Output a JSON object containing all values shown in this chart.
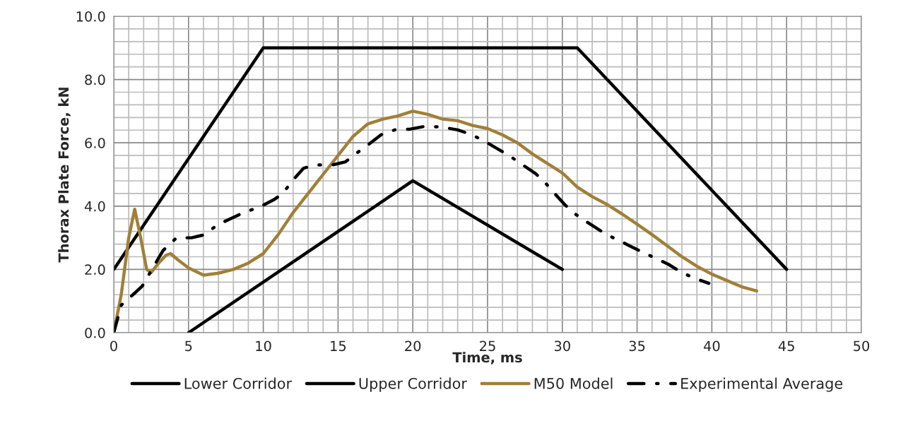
{
  "chart_data": {
    "type": "line",
    "xlabel": "Time, ms",
    "ylabel": "Thorax Plate Force, kN",
    "xlim": [
      0,
      50
    ],
    "xticks": [
      0,
      5,
      10,
      15,
      20,
      25,
      30,
      35,
      40,
      45,
      50
    ],
    "ylim": [
      0,
      10
    ],
    "yticks": [
      {
        "value": 0,
        "label": "0.0"
      },
      {
        "value": 2,
        "label": "2.0"
      },
      {
        "value": 4,
        "label": "4.0"
      },
      {
        "value": 6,
        "label": "6.0"
      },
      {
        "value": 8,
        "label": "8.0"
      },
      {
        "value": 10,
        "label": "10.0"
      }
    ],
    "grid": true,
    "legend": "bottom",
    "marker": "none",
    "series": [
      {
        "name": "Lower Corridor",
        "color": "#000000",
        "line_style": "solid",
        "x": [
          5,
          20,
          30
        ],
        "values": [
          0,
          4.8,
          2
        ]
      },
      {
        "name": "Upper Corridor",
        "color": "#000000",
        "line_style": "solid",
        "x": [
          0,
          10,
          31,
          45
        ],
        "values": [
          2,
          9,
          9,
          2
        ]
      },
      {
        "name": "M50 Model",
        "color": "#a08038",
        "line_style": "solid",
        "x": [
          0,
          0.5,
          1,
          1.4,
          1.8,
          2.2,
          2.5,
          3,
          3.5,
          3.8,
          4.3,
          5,
          6,
          7,
          8,
          9,
          10,
          11,
          12,
          13,
          14,
          15,
          16,
          17,
          18,
          19,
          20,
          21,
          22,
          23,
          24,
          25,
          26,
          27,
          28,
          29,
          30,
          31,
          32,
          33,
          34,
          35,
          36,
          37,
          38,
          39,
          40,
          41,
          42,
          43
        ],
        "values": [
          0,
          1.2,
          3.0,
          3.9,
          3.0,
          2.0,
          1.9,
          2.2,
          2.45,
          2.5,
          2.3,
          2.05,
          1.82,
          1.88,
          2.0,
          2.2,
          2.5,
          3.1,
          3.8,
          4.4,
          5.0,
          5.6,
          6.2,
          6.6,
          6.75,
          6.85,
          7.0,
          6.9,
          6.75,
          6.7,
          6.55,
          6.45,
          6.25,
          6.0,
          5.65,
          5.35,
          5.05,
          4.6,
          4.3,
          4.05,
          3.75,
          3.43,
          3.1,
          2.75,
          2.4,
          2.1,
          1.85,
          1.65,
          1.45,
          1.32
        ]
      },
      {
        "name": "Experimental Average",
        "color": "#000000",
        "line_style": "dashdot",
        "x": [
          0,
          0.5,
          1.4,
          1.9,
          3.3,
          4.2,
          5.2,
          6.1,
          6.9,
          7.8,
          8.7,
          9.7,
          10.7,
          11.3,
          12,
          12.7,
          13.5,
          14.6,
          15.5,
          16.2,
          17.1,
          17.9,
          18.8,
          19.8,
          20.8,
          21.9,
          23,
          23.8,
          24.7,
          25.6,
          26.4,
          27.3,
          28.2,
          28.8,
          29.5,
          30.2,
          30.9,
          31.8,
          32.7,
          33.4,
          34.4,
          35.3,
          36.2,
          37.1,
          38,
          38.8,
          39.8
        ],
        "values": [
          0,
          0.87,
          1.25,
          1.47,
          2.6,
          3.0,
          3.0,
          3.1,
          3.4,
          3.6,
          3.8,
          3.96,
          4.2,
          4.4,
          4.83,
          5.2,
          5.3,
          5.3,
          5.4,
          5.66,
          5.97,
          6.26,
          6.41,
          6.43,
          6.52,
          6.5,
          6.41,
          6.28,
          6.08,
          5.83,
          5.61,
          5.32,
          5.03,
          4.77,
          4.39,
          4.03,
          3.74,
          3.45,
          3.18,
          3.0,
          2.77,
          2.56,
          2.36,
          2.16,
          1.9,
          1.73,
          1.56
        ]
      }
    ]
  }
}
